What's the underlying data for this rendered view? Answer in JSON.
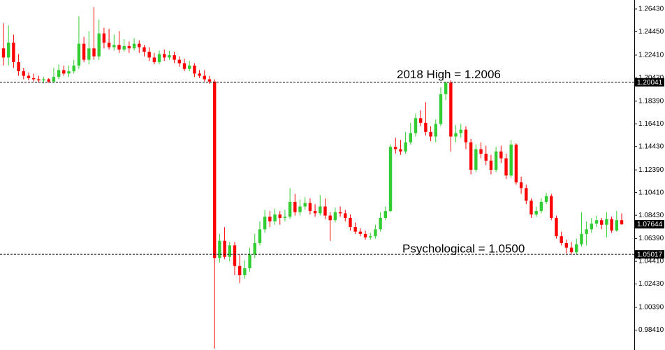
{
  "chart_data": {
    "type": "candlestick",
    "up_color": "#32cd32",
    "down_color": "#ff0000",
    "ylim": [
      0.9667,
      1.2722
    ],
    "yticks": [
      {
        "value": 1.2643,
        "label": "1.26430"
      },
      {
        "value": 1.2445,
        "label": "1.24450"
      },
      {
        "value": 1.2241,
        "label": "1.22410"
      },
      {
        "value": 1.2042,
        "label": "1.20420"
      },
      {
        "value": 1.1839,
        "label": "1.18390"
      },
      {
        "value": 1.1641,
        "label": "1.16410"
      },
      {
        "value": 1.1443,
        "label": "1.14430"
      },
      {
        "value": 1.1239,
        "label": "1.12390"
      },
      {
        "value": 1.1041,
        "label": "1.10410"
      },
      {
        "value": 1.0843,
        "label": "1.08430"
      },
      {
        "value": 1.0639,
        "label": "1.06390"
      },
      {
        "value": 1.0441,
        "label": "1.04410"
      },
      {
        "value": 1.0243,
        "label": "1.02430"
      },
      {
        "value": 1.0039,
        "label": "1.00390"
      },
      {
        "value": 0.9841,
        "label": "0.98410"
      }
    ],
    "levels": [
      {
        "value": 1.20041,
        "label": "1.20041"
      },
      {
        "value": 1.05017,
        "label": "1.05017"
      }
    ],
    "last_price": {
      "value": 1.07644,
      "label": "1.07644"
    },
    "annotations": [
      "2018 High = 1.2006",
      "Psychological = 1.0500"
    ],
    "ohlc": [
      [
        1.23,
        1.252,
        1.215,
        1.222
      ],
      [
        1.222,
        1.25,
        1.215,
        1.235
      ],
      [
        1.235,
        1.242,
        1.213,
        1.218
      ],
      [
        1.218,
        1.225,
        1.206,
        1.21
      ],
      [
        1.21,
        1.213,
        1.203,
        1.206
      ],
      [
        1.206,
        1.209,
        1.202,
        1.204
      ],
      [
        1.204,
        1.208,
        1.201,
        1.203
      ],
      [
        1.203,
        1.206,
        1.2,
        1.202
      ],
      [
        1.202,
        1.205,
        1.2,
        1.203
      ],
      [
        1.203,
        1.204,
        1.2,
        1.201
      ],
      [
        1.201,
        1.213,
        1.2,
        1.205
      ],
      [
        1.205,
        1.216,
        1.203,
        1.211
      ],
      [
        1.211,
        1.215,
        1.206,
        1.208
      ],
      [
        1.208,
        1.215,
        1.205,
        1.21
      ],
      [
        1.21,
        1.22,
        1.208,
        1.215
      ],
      [
        1.215,
        1.258,
        1.212,
        1.234
      ],
      [
        1.234,
        1.24,
        1.218,
        1.22
      ],
      [
        1.22,
        1.245,
        1.216,
        1.23
      ],
      [
        1.23,
        1.266,
        1.22,
        1.223
      ],
      [
        1.223,
        1.255,
        1.22,
        1.243
      ],
      [
        1.243,
        1.248,
        1.23,
        1.235
      ],
      [
        1.235,
        1.247,
        1.229,
        1.231
      ],
      [
        1.231,
        1.242,
        1.228,
        1.233
      ],
      [
        1.233,
        1.245,
        1.226,
        1.229
      ],
      [
        1.229,
        1.238,
        1.227,
        1.232
      ],
      [
        1.232,
        1.236,
        1.226,
        1.23
      ],
      [
        1.23,
        1.239,
        1.228,
        1.234
      ],
      [
        1.234,
        1.237,
        1.226,
        1.231
      ],
      [
        1.231,
        1.233,
        1.223,
        1.227
      ],
      [
        1.227,
        1.231,
        1.219,
        1.222
      ],
      [
        1.222,
        1.226,
        1.216,
        1.218
      ],
      [
        1.218,
        1.228,
        1.216,
        1.225
      ],
      [
        1.225,
        1.229,
        1.219,
        1.222
      ],
      [
        1.222,
        1.228,
        1.22,
        1.224
      ],
      [
        1.224,
        1.227,
        1.217,
        1.22
      ],
      [
        1.22,
        1.223,
        1.214,
        1.217
      ],
      [
        1.217,
        1.221,
        1.21,
        1.212
      ],
      [
        1.212,
        1.219,
        1.21,
        1.215
      ],
      [
        1.215,
        1.217,
        1.205,
        1.208
      ],
      [
        1.208,
        1.211,
        1.204,
        1.206
      ],
      [
        1.206,
        1.211,
        1.201,
        1.203
      ],
      [
        1.203,
        1.206,
        1.199,
        1.201
      ],
      [
        1.201,
        1.203,
        0.968,
        1.047
      ],
      [
        1.047,
        1.068,
        1.043,
        1.062
      ],
      [
        1.062,
        1.074,
        1.046,
        1.048
      ],
      [
        1.048,
        1.061,
        1.044,
        1.058
      ],
      [
        1.058,
        1.061,
        1.032,
        1.04
      ],
      [
        1.04,
        1.05,
        1.025,
        1.032
      ],
      [
        1.032,
        1.045,
        1.029,
        1.038
      ],
      [
        1.038,
        1.056,
        1.035,
        1.05
      ],
      [
        1.05,
        1.068,
        1.047,
        1.06
      ],
      [
        1.06,
        1.079,
        1.058,
        1.072
      ],
      [
        1.072,
        1.089,
        1.069,
        1.083
      ],
      [
        1.083,
        1.088,
        1.074,
        1.079
      ],
      [
        1.079,
        1.09,
        1.076,
        1.085
      ],
      [
        1.085,
        1.088,
        1.076,
        1.082
      ],
      [
        1.082,
        1.089,
        1.079,
        1.083
      ],
      [
        1.083,
        1.108,
        1.081,
        1.096
      ],
      [
        1.096,
        1.103,
        1.084,
        1.087
      ],
      [
        1.087,
        1.098,
        1.084,
        1.092
      ],
      [
        1.092,
        1.1,
        1.089,
        1.095
      ],
      [
        1.095,
        1.099,
        1.085,
        1.088
      ],
      [
        1.088,
        1.094,
        1.083,
        1.086
      ],
      [
        1.086,
        1.102,
        1.084,
        1.092
      ],
      [
        1.092,
        1.099,
        1.081,
        1.084
      ],
      [
        1.084,
        1.087,
        1.062,
        1.08
      ],
      [
        1.08,
        1.091,
        1.078,
        1.087
      ],
      [
        1.087,
        1.092,
        1.083,
        1.086
      ],
      [
        1.086,
        1.089,
        1.079,
        1.082
      ],
      [
        1.082,
        1.085,
        1.071,
        1.074
      ],
      [
        1.074,
        1.078,
        1.068,
        1.07
      ],
      [
        1.07,
        1.073,
        1.066,
        1.068
      ],
      [
        1.068,
        1.071,
        1.063,
        1.065
      ],
      [
        1.065,
        1.069,
        1.063,
        1.066
      ],
      [
        1.066,
        1.076,
        1.064,
        1.072
      ],
      [
        1.072,
        1.087,
        1.07,
        1.082
      ],
      [
        1.082,
        1.092,
        1.08,
        1.088
      ],
      [
        1.088,
        1.146,
        1.087,
        1.144
      ],
      [
        1.144,
        1.152,
        1.138,
        1.142
      ],
      [
        1.142,
        1.15,
        1.137,
        1.14
      ],
      [
        1.14,
        1.157,
        1.138,
        1.148
      ],
      [
        1.148,
        1.165,
        1.146,
        1.156
      ],
      [
        1.156,
        1.173,
        1.153,
        1.169
      ],
      [
        1.169,
        1.176,
        1.162,
        1.165
      ],
      [
        1.165,
        1.183,
        1.154,
        1.157
      ],
      [
        1.157,
        1.162,
        1.149,
        1.153
      ],
      [
        1.153,
        1.168,
        1.148,
        1.164
      ],
      [
        1.164,
        1.196,
        1.162,
        1.19
      ],
      [
        1.19,
        1.2006,
        1.185,
        1.2
      ],
      [
        1.2,
        1.202,
        1.14,
        1.153
      ],
      [
        1.153,
        1.163,
        1.148,
        1.156
      ],
      [
        1.156,
        1.164,
        1.152,
        1.159
      ],
      [
        1.159,
        1.162,
        1.142,
        1.148
      ],
      [
        1.148,
        1.151,
        1.12,
        1.124
      ],
      [
        1.124,
        1.146,
        1.122,
        1.142
      ],
      [
        1.142,
        1.148,
        1.134,
        1.138
      ],
      [
        1.138,
        1.145,
        1.128,
        1.132
      ],
      [
        1.132,
        1.137,
        1.12,
        1.124
      ],
      [
        1.124,
        1.144,
        1.122,
        1.14
      ],
      [
        1.14,
        1.145,
        1.13,
        1.134
      ],
      [
        1.134,
        1.138,
        1.116,
        1.119
      ],
      [
        1.119,
        1.15,
        1.117,
        1.146
      ],
      [
        1.146,
        1.147,
        1.111,
        1.113
      ],
      [
        1.113,
        1.118,
        1.103,
        1.108
      ],
      [
        1.108,
        1.111,
        1.094,
        1.097
      ],
      [
        1.097,
        1.099,
        1.082,
        1.085
      ],
      [
        1.085,
        1.092,
        1.083,
        1.088
      ],
      [
        1.088,
        1.099,
        1.086,
        1.096
      ],
      [
        1.096,
        1.104,
        1.094,
        1.101
      ],
      [
        1.101,
        1.103,
        1.08,
        1.082
      ],
      [
        1.082,
        1.084,
        1.064,
        1.066
      ],
      [
        1.066,
        1.07,
        1.058,
        1.06
      ],
      [
        1.06,
        1.063,
        1.051,
        1.056
      ],
      [
        1.056,
        1.061,
        1.05,
        1.052
      ],
      [
        1.052,
        1.064,
        1.05,
        1.059
      ],
      [
        1.059,
        1.087,
        1.057,
        1.068
      ],
      [
        1.068,
        1.079,
        1.058,
        1.072
      ],
      [
        1.072,
        1.082,
        1.069,
        1.077
      ],
      [
        1.077,
        1.084,
        1.074,
        1.08
      ],
      [
        1.08,
        1.082,
        1.072,
        1.076
      ],
      [
        1.076,
        1.087,
        1.065,
        1.081
      ],
      [
        1.081,
        1.083,
        1.069,
        1.071
      ],
      [
        1.071,
        1.088,
        1.07,
        1.08
      ],
      [
        1.08,
        1.086,
        1.076,
        1.0764
      ]
    ]
  }
}
